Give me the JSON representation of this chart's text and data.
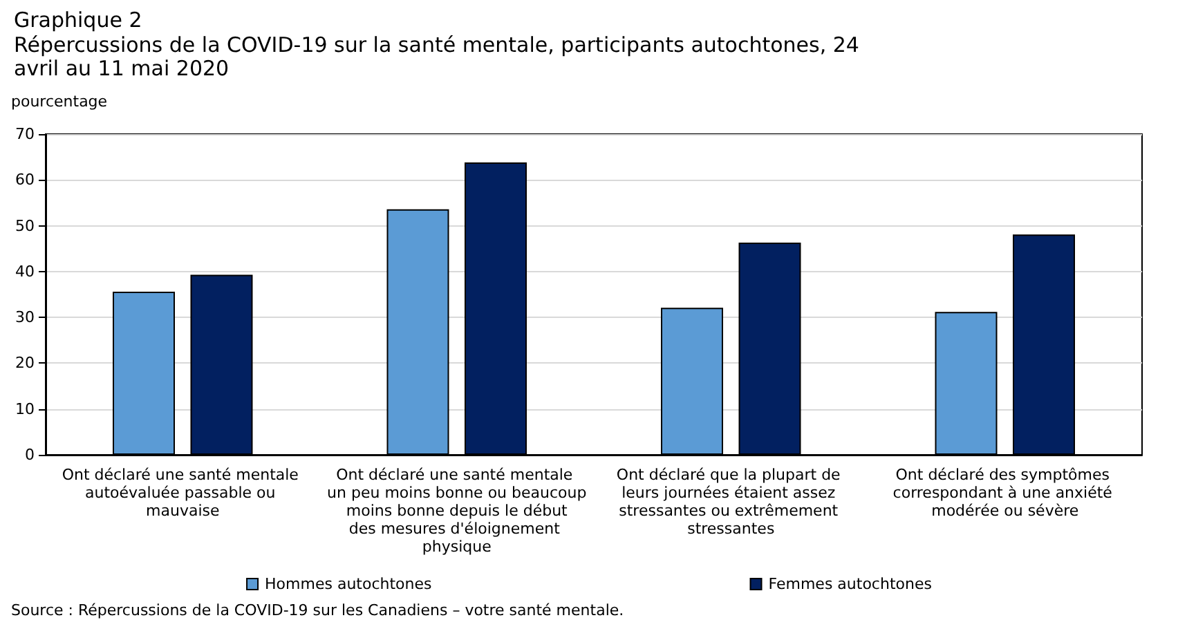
{
  "chart_data": {
    "type": "bar",
    "title": "Graphique 2",
    "subtitle": "Répercussions de la COVID-19 sur la santé mentale, participants autochtones, 24 avril au 11 mai 2020",
    "ylabel": "pourcentage",
    "categories": [
      "Ont déclaré une santé mentale autoévaluée passable ou mauvaise",
      "Ont déclaré une santé mentale un peu moins bonne ou beaucoup moins bonne depuis le début des mesures d'éloignement physique",
      "Ont déclaré que la plupart de leurs journées étaient assez stressantes ou extrêmement stressantes",
      "Ont déclaré des symptômes correspondant à une anxiété modérée ou sévère"
    ],
    "series": [
      {
        "name": "Hommes autochtones",
        "color": "#5b9bd5",
        "values": [
          35.6,
          53.6,
          32.1,
          31.2
        ]
      },
      {
        "name": "Femmes autochtones",
        "color": "#022060",
        "values": [
          39.3,
          63.8,
          46.3,
          48.1
        ]
      }
    ],
    "ylim": [
      0,
      70
    ],
    "yticks": [
      0,
      10,
      20,
      30,
      40,
      50,
      60,
      70
    ],
    "grid": "y",
    "legend": "bottom",
    "annotations": [
      "Source : Répercussions de la COVID-19 sur les Canadiens – votre santé mentale."
    ]
  }
}
